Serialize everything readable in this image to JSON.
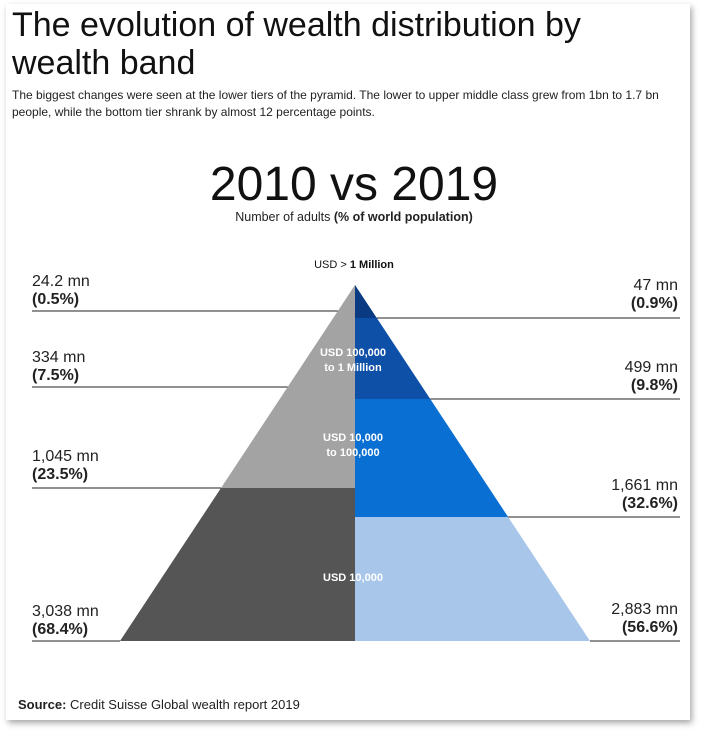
{
  "title": "The evolution of wealth distribution by wealth band",
  "subtitle": "The biggest changes were seen at the lower tiers of the pyramid. The lower to upper middle class grew from 1bn to 1.7 bn people, while the bottom tier shrank by almost 12 percentage points.",
  "comparison_title": "2010 vs 2019",
  "unit_note": {
    "plain": "Number of adults ",
    "bold": "(% of world population)"
  },
  "source": {
    "label": "Source:",
    "text": " Credit Suisse Global wealth report 2019"
  },
  "colors": {
    "left_light": "#a3a3a3",
    "left_dark": "#555555",
    "right_1": "#0a3a82",
    "right_2": "#0e50a8",
    "right_3": "#0a6fd2",
    "right_4": "#a8c6ea"
  },
  "chart_data": {
    "type": "pyramid",
    "years": [
      "2010",
      "2019"
    ],
    "bands": [
      {
        "label_prefix": "USD > ",
        "label_bold": "1 Million",
        "y2010": {
          "adults_mn": 24.2,
          "pct": 0.5,
          "text": "24.2 mn",
          "pct_text": "(0.5%)"
        },
        "y2019": {
          "adults_mn": 47,
          "pct": 0.9,
          "text": "47 mn",
          "pct_text": "(0.9%)"
        }
      },
      {
        "label": "USD 100,000 to 1 Million",
        "label_line1": "USD 100,000",
        "label_line2": "to 1 Million",
        "y2010": {
          "adults_mn": 334,
          "pct": 7.5,
          "text": "334 mn",
          "pct_text": "(7.5%)"
        },
        "y2019": {
          "adults_mn": 499,
          "pct": 9.8,
          "text": "499 mn",
          "pct_text": "(9.8%)"
        }
      },
      {
        "label": "USD 10,000 to 100,000",
        "label_line1": "USD 10,000",
        "label_line2": "to 100,000",
        "y2010": {
          "adults_mn": 1045,
          "pct": 23.5,
          "text": "1,045 mn",
          "pct_text": "(23.5%)"
        },
        "y2019": {
          "adults_mn": 1661,
          "pct": 32.6,
          "text": "1,661 mn",
          "pct_text": "(32.6%)"
        }
      },
      {
        "label": "USD 10,000",
        "label_line1": "USD 10,000",
        "y2010": {
          "adults_mn": 3038,
          "pct": 68.4,
          "text": "3,038 mn",
          "pct_text": "(68.4%)"
        },
        "y2019": {
          "adults_mn": 2883,
          "pct": 56.6,
          "text": "2,883 mn",
          "pct_text": "(56.6%)"
        }
      }
    ]
  }
}
